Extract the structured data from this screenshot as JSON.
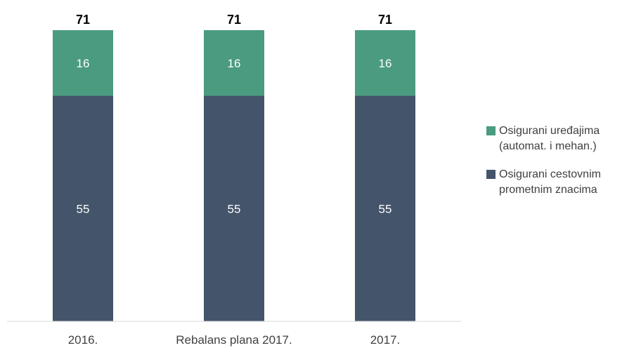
{
  "colors": {
    "series_0": "#4a9b80",
    "series_1": "#44546a",
    "total_text": "#000000",
    "segment_text": "#ffffff",
    "axis": "#d9d9d9",
    "tick_text": "#404040"
  },
  "legend": [
    {
      "label": "Osigurani uređajima\n(automat. i mehan.)",
      "series_index": 0
    },
    {
      "label": "Osigurani cestovnim\nprometnim znacima",
      "series_index": 1
    }
  ],
  "chart_data": {
    "type": "bar",
    "stacked": true,
    "categories": [
      "2016.",
      "Rebalans plana 2017.",
      "2017."
    ],
    "series": [
      {
        "name": "Osigurani uređajima (automat. i mehan.)",
        "values": [
          16,
          16,
          16
        ]
      },
      {
        "name": "Osigurani cestovnim prometnim znacima",
        "values": [
          55,
          55,
          55
        ]
      }
    ],
    "totals": [
      71,
      71,
      71
    ],
    "title": "",
    "xlabel": "",
    "ylabel": "",
    "ylim": [
      0,
      71
    ],
    "grid": false,
    "legend_position": "right"
  }
}
